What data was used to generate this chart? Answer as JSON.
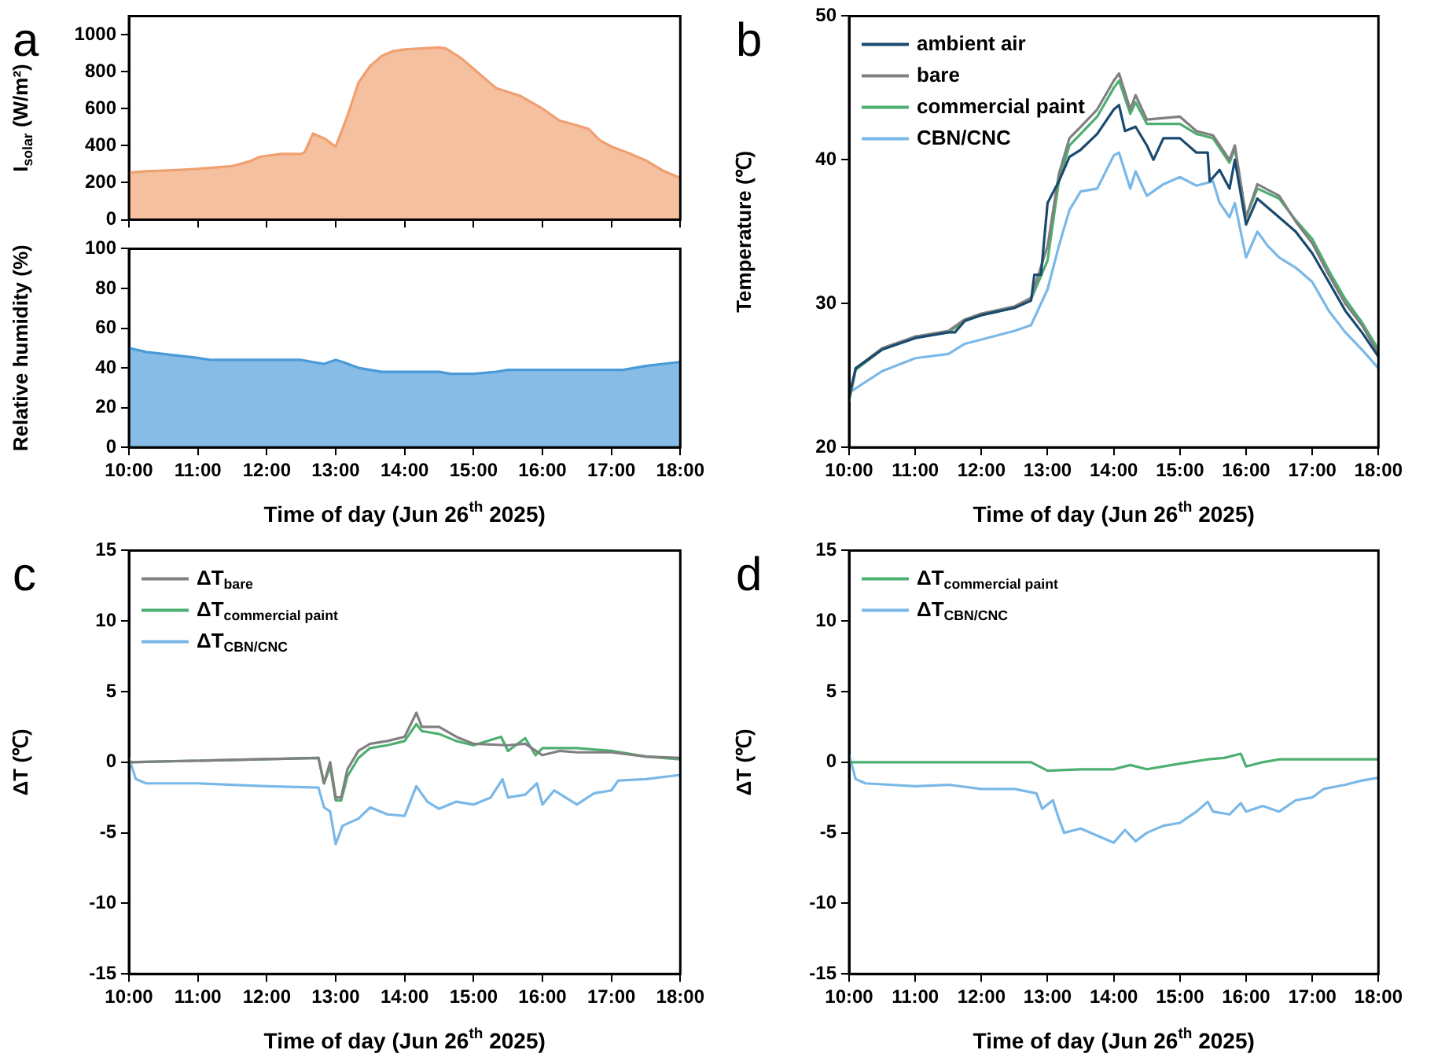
{
  "chart_data": [
    {
      "type": "area",
      "ylabel": "I$_{solar}$ (W/m²)",
      "annotations": [
        "a"
      ],
      "xlim": [
        10,
        18
      ],
      "xticks": [
        {
          "value": 10,
          "label": "10:00"
        },
        {
          "value": 11,
          "label": "11:00"
        },
        {
          "value": 12,
          "label": "12:00"
        },
        {
          "value": 13,
          "label": "13:00"
        },
        {
          "value": 14,
          "label": "14:00"
        },
        {
          "value": 15,
          "label": "15:00"
        },
        {
          "value": 16,
          "label": "16:00"
        },
        {
          "value": 17,
          "label": "17:00"
        },
        {
          "value": 18,
          "label": "18:00"
        }
      ],
      "ylim": [
        0,
        1100
      ],
      "yticks": [
        0,
        200,
        400,
        600,
        800,
        1000
      ],
      "tick_labels": "y",
      "grid": false,
      "legend": false,
      "marker": "none",
      "series": [
        {
          "color": "#f0a070",
          "x": [
            10,
            10.25,
            10.5,
            10.75,
            11,
            11.25,
            11.5,
            11.75,
            11.9,
            12.2,
            12.5,
            12.55,
            12.67,
            12.83,
            13,
            13.17,
            13.33,
            13.5,
            13.67,
            13.83,
            14,
            14.25,
            14.5,
            14.6,
            14.83,
            15,
            15.25,
            15.33,
            15.67,
            16,
            16.25,
            16.5,
            16.67,
            16.83,
            17,
            17.25,
            17.5,
            17.75,
            18
          ],
          "values": [
            255,
            262,
            265,
            270,
            275,
            282,
            290,
            315,
            340,
            355,
            355,
            365,
            465,
            440,
            395,
            560,
            740,
            830,
            885,
            910,
            920,
            925,
            930,
            925,
            870,
            815,
            735,
            710,
            670,
            600,
            535,
            510,
            490,
            430,
            395,
            360,
            320,
            265,
            225
          ]
        }
      ]
    },
    {
      "type": "area",
      "xlabel": "Time of day (Jun 26$^{th}$ 2025)",
      "ylabel": "Relative humidity (%)",
      "xlim": [
        10,
        18
      ],
      "xticks": [
        {
          "value": 10,
          "label": "10:00"
        },
        {
          "value": 11,
          "label": "11:00"
        },
        {
          "value": 12,
          "label": "12:00"
        },
        {
          "value": 13,
          "label": "13:00"
        },
        {
          "value": 14,
          "label": "14:00"
        },
        {
          "value": 15,
          "label": "15:00"
        },
        {
          "value": 16,
          "label": "16:00"
        },
        {
          "value": 17,
          "label": "17:00"
        },
        {
          "value": 18,
          "label": "18:00"
        }
      ],
      "ylim": [
        0,
        100
      ],
      "yticks": [
        0,
        20,
        40,
        60,
        80,
        100
      ],
      "grid": false,
      "legend": false,
      "marker": "none",
      "series": [
        {
          "color": "#4a9ad8",
          "x": [
            10,
            10.25,
            10.5,
            10.75,
            11,
            11.2,
            11.5,
            12,
            12.5,
            12.83,
            13,
            13.1,
            13.33,
            13.67,
            14,
            14.5,
            14.67,
            15,
            15.33,
            15.5,
            16,
            16.5,
            17,
            17.17,
            17.5,
            17.75,
            18
          ],
          "values": [
            50,
            48,
            47,
            46,
            45,
            44,
            44,
            44,
            44,
            42,
            44,
            43,
            40,
            38,
            38,
            38,
            37,
            37,
            38,
            39,
            39,
            39,
            39,
            39,
            41,
            42,
            43
          ]
        }
      ]
    },
    {
      "type": "line",
      "xlabel": "Time of day (Jun 26$^{th}$ 2025)",
      "ylabel": "Temperature (℃)",
      "annotations": [
        "b"
      ],
      "xlim": [
        10,
        18
      ],
      "xticks": [
        {
          "value": 10,
          "label": "10:00"
        },
        {
          "value": 11,
          "label": "11:00"
        },
        {
          "value": 12,
          "label": "12:00"
        },
        {
          "value": 13,
          "label": "13:00"
        },
        {
          "value": 14,
          "label": "14:00"
        },
        {
          "value": 15,
          "label": "15:00"
        },
        {
          "value": 16,
          "label": "16:00"
        },
        {
          "value": 17,
          "label": "17:00"
        },
        {
          "value": 18,
          "label": "18:00"
        }
      ],
      "ylim": [
        20,
        50
      ],
      "yticks": [
        20,
        30,
        40,
        50
      ],
      "grid": false,
      "legend": "top left",
      "marker": "none",
      "line_style": "solid",
      "series": [
        {
          "name": "ambient air",
          "color": "#1a4a70",
          "x": [
            10,
            10.1,
            10.5,
            11,
            11.5,
            11.6,
            11.75,
            12,
            12.5,
            12.75,
            12.8,
            12.9,
            13,
            13.17,
            13.33,
            13.5,
            13.75,
            14,
            14.08,
            14.17,
            14.33,
            14.5,
            14.6,
            14.75,
            15,
            15.25,
            15.42,
            15.45,
            15.6,
            15.75,
            15.83,
            16,
            16.17,
            16.5,
            16.75,
            17,
            17.25,
            17.5,
            17.75,
            18
          ],
          "values": [
            23.5,
            25.5,
            26.8,
            27.6,
            28,
            28,
            28.8,
            29.2,
            29.7,
            30.2,
            32,
            32,
            37,
            38.5,
            40.2,
            40.7,
            41.8,
            43.5,
            43.8,
            42,
            42.3,
            41,
            40,
            41.5,
            41.5,
            40.5,
            40.5,
            38.5,
            39.3,
            38,
            40,
            35.5,
            37.3,
            36,
            35,
            33.5,
            31.5,
            29.5,
            28,
            26.3
          ]
        },
        {
          "name": "bare",
          "color": "#808080",
          "x": [
            10,
            10.1,
            10.5,
            11,
            11.5,
            11.75,
            12,
            12.5,
            12.75,
            13,
            13.17,
            13.33,
            13.5,
            13.75,
            14,
            14.08,
            14.25,
            14.33,
            14.5,
            15,
            15.25,
            15.5,
            15.75,
            15.83,
            16,
            16.17,
            16.5,
            16.75,
            17,
            17.25,
            17.5,
            17.75,
            18
          ],
          "values": [
            23.3,
            25.5,
            26.9,
            27.7,
            28.1,
            28.9,
            29.3,
            29.8,
            30.4,
            34,
            39,
            41.5,
            42.3,
            43.5,
            45.5,
            46,
            43.5,
            44.5,
            42.8,
            43,
            42,
            41.7,
            40,
            41,
            36,
            38.3,
            37.5,
            35.7,
            34.2,
            32,
            30,
            28.5,
            26.5
          ]
        },
        {
          "name": "commercial paint",
          "color": "#4daf70",
          "x": [
            10,
            10.1,
            10.5,
            11,
            11.5,
            11.75,
            12,
            12.5,
            12.75,
            13,
            13.17,
            13.33,
            13.5,
            13.75,
            14,
            14.08,
            14.25,
            14.33,
            14.5,
            15,
            15.25,
            15.5,
            15.75,
            15.83,
            16,
            16.17,
            16.5,
            16.75,
            17,
            17.25,
            17.5,
            17.75,
            18
          ],
          "values": [
            23.2,
            25.4,
            26.8,
            27.7,
            28,
            28.8,
            29.2,
            29.7,
            30.3,
            33,
            38.5,
            41,
            41.8,
            43,
            45,
            45.5,
            43.2,
            44,
            42.5,
            42.5,
            41.8,
            41.5,
            39.8,
            40.8,
            36,
            38,
            37.3,
            35.8,
            34.5,
            32.3,
            30.3,
            28.7,
            26.8
          ]
        },
        {
          "name": "CBN/CNC",
          "color": "#7ab8e8",
          "x": [
            10,
            10.5,
            11,
            11.5,
            11.75,
            12,
            12.5,
            12.75,
            13,
            13.17,
            13.33,
            13.5,
            13.75,
            14,
            14.08,
            14.25,
            14.33,
            14.5,
            14.75,
            15,
            15.25,
            15.5,
            15.6,
            15.75,
            15.83,
            16,
            16.17,
            16.33,
            16.5,
            16.75,
            17,
            17.25,
            17.5,
            17.75,
            18
          ],
          "values": [
            23.8,
            25.3,
            26.2,
            26.5,
            27.2,
            27.5,
            28.1,
            28.5,
            31,
            34,
            36.5,
            37.8,
            38,
            40.3,
            40.5,
            38,
            39.2,
            37.5,
            38.3,
            38.8,
            38.2,
            38.5,
            37,
            36,
            37,
            33.2,
            35,
            34,
            33.2,
            32.5,
            31.5,
            29.5,
            28,
            26.8,
            25.5
          ]
        }
      ]
    },
    {
      "type": "line",
      "xlabel": "Time of day (Jun 26$^{th}$ 2025)",
      "ylabel": "ΔT (℃)",
      "annotations": [
        "c"
      ],
      "xlim": [
        10,
        18
      ],
      "xticks": [
        {
          "value": 10,
          "label": "10:00"
        },
        {
          "value": 11,
          "label": "11:00"
        },
        {
          "value": 12,
          "label": "12:00"
        },
        {
          "value": 13,
          "label": "13:00"
        },
        {
          "value": 14,
          "label": "14:00"
        },
        {
          "value": 15,
          "label": "15:00"
        },
        {
          "value": 16,
          "label": "16:00"
        },
        {
          "value": 17,
          "label": "17:00"
        },
        {
          "value": 18,
          "label": "18:00"
        }
      ],
      "ylim": [
        -15,
        15
      ],
      "yticks": [
        -15,
        -10,
        -5,
        0,
        5,
        10,
        15
      ],
      "grid": false,
      "legend": "top left",
      "marker": "none",
      "line_style": "solid",
      "series": [
        {
          "name": "ΔT$_{bare}$",
          "color": "#808080",
          "x": [
            10,
            12.75,
            12.83,
            12.92,
            13,
            13.08,
            13.17,
            13.33,
            13.5,
            13.75,
            14,
            14.17,
            14.25,
            14.5,
            14.75,
            15,
            15.5,
            15.75,
            16,
            16.25,
            16.5,
            17,
            17.5,
            18
          ],
          "values": [
            0,
            0.3,
            -1.5,
            0,
            -2.5,
            -2.5,
            -0.5,
            0.8,
            1.3,
            1.5,
            1.8,
            3.5,
            2.5,
            2.5,
            1.8,
            1.3,
            1.2,
            1.3,
            0.5,
            0.8,
            0.7,
            0.7,
            0.4,
            0.3
          ]
        },
        {
          "name": "ΔT$_{commercial paint}$",
          "color": "#4daf70",
          "x": [
            10,
            12.75,
            12.83,
            12.92,
            13,
            13.08,
            13.17,
            13.33,
            13.5,
            13.75,
            14,
            14.17,
            14.25,
            14.5,
            14.75,
            15,
            15.4,
            15.5,
            15.75,
            15.9,
            16,
            16.5,
            17,
            17.5,
            18
          ],
          "values": [
            0,
            0.3,
            -1.5,
            -0.3,
            -2.7,
            -2.7,
            -1,
            0.3,
            1,
            1.2,
            1.5,
            2.7,
            2.2,
            2,
            1.5,
            1.2,
            1.8,
            0.8,
            1.7,
            0.5,
            1,
            1,
            0.8,
            0.4,
            0.2
          ]
        },
        {
          "name": "ΔT$_{CBN/CNC}$",
          "color": "#7ab8e8",
          "x": [
            10,
            10.1,
            10.25,
            11,
            11.5,
            12,
            12.75,
            12.83,
            12.92,
            13,
            13.1,
            13.33,
            13.5,
            13.75,
            14,
            14.17,
            14.33,
            14.5,
            14.75,
            15,
            15.25,
            15.42,
            15.5,
            15.75,
            15.92,
            16,
            16.17,
            16.5,
            16.75,
            17,
            17.1,
            17.5,
            18
          ],
          "values": [
            0.3,
            -1.2,
            -1.5,
            -1.5,
            -1.6,
            -1.7,
            -1.8,
            -3.2,
            -3.5,
            -5.8,
            -4.5,
            -4,
            -3.2,
            -3.7,
            -3.8,
            -1.7,
            -2.8,
            -3.3,
            -2.8,
            -3,
            -2.5,
            -1.2,
            -2.5,
            -2.3,
            -1.5,
            -3,
            -2,
            -3,
            -2.2,
            -2,
            -1.3,
            -1.2,
            -0.9
          ]
        }
      ]
    },
    {
      "type": "line",
      "xlabel": "Time of day (Jun 26$^{th}$ 2025)",
      "ylabel": "ΔT (℃)",
      "annotations": [
        "d"
      ],
      "xlim": [
        10,
        18
      ],
      "xticks": [
        {
          "value": 10,
          "label": "10:00"
        },
        {
          "value": 11,
          "label": "11:00"
        },
        {
          "value": 12,
          "label": "12:00"
        },
        {
          "value": 13,
          "label": "13:00"
        },
        {
          "value": 14,
          "label": "14:00"
        },
        {
          "value": 15,
          "label": "15:00"
        },
        {
          "value": 16,
          "label": "16:00"
        },
        {
          "value": 17,
          "label": "17:00"
        },
        {
          "value": 18,
          "label": "18:00"
        }
      ],
      "ylim": [
        -15,
        15
      ],
      "yticks": [
        -15,
        -10,
        -5,
        0,
        5,
        10,
        15
      ],
      "grid": false,
      "legend": "top left",
      "marker": "none",
      "line_style": "solid",
      "series": [
        {
          "name": "ΔT$_{commercial paint}$",
          "color": "#4daf70",
          "x": [
            10,
            12.75,
            13,
            13.5,
            14,
            14.25,
            14.5,
            15,
            15.42,
            15.67,
            15.92,
            16,
            16.25,
            16.5,
            17,
            18
          ],
          "values": [
            0,
            0,
            -0.6,
            -0.5,
            -0.5,
            -0.2,
            -0.5,
            -0.1,
            0.2,
            0.3,
            0.6,
            -0.3,
            0,
            0.2,
            0.2,
            0.2
          ]
        },
        {
          "name": "ΔT$_{CBN/CNC}$",
          "color": "#7ab8e8",
          "x": [
            10,
            10.1,
            10.25,
            11,
            11.5,
            12,
            12.5,
            12.83,
            12.92,
            13.08,
            13.17,
            13.25,
            13.5,
            13.75,
            14,
            14.17,
            14.33,
            14.5,
            14.75,
            15,
            15.25,
            15.42,
            15.5,
            15.75,
            15.92,
            16,
            16.25,
            16.5,
            16.75,
            17,
            17.17,
            17.5,
            17.75,
            18
          ],
          "values": [
            0.5,
            -1.2,
            -1.5,
            -1.7,
            -1.6,
            -1.9,
            -1.9,
            -2.2,
            -3.3,
            -2.7,
            -4,
            -5,
            -4.7,
            -5.2,
            -5.7,
            -4.8,
            -5.6,
            -5,
            -4.5,
            -4.3,
            -3.5,
            -2.8,
            -3.5,
            -3.7,
            -2.9,
            -3.5,
            -3.1,
            -3.5,
            -2.7,
            -2.5,
            -1.9,
            -1.6,
            -1.3,
            -1.1
          ]
        }
      ]
    }
  ]
}
